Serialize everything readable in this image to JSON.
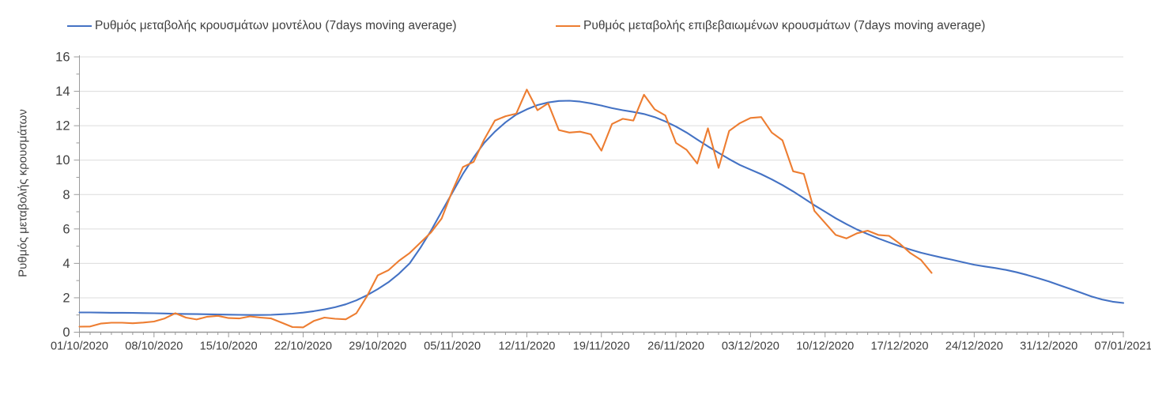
{
  "page": {
    "background": "#ffffff"
  },
  "legend": {
    "items": [
      {
        "label": "Ρυθμός μεταβολής κρουσμάτων μοντέλου (7days moving average)",
        "color": "#4472C4"
      },
      {
        "label": "Ρυθμός μεταβολής επιβεβαιωμένων κρουσμάτων (7days moving average)",
        "color": "#ED7D31"
      }
    ]
  },
  "chart_data": {
    "type": "line",
    "title": "",
    "xlabel": "",
    "ylabel": "Ρυθμός μεταβολής κρουσμάτων",
    "ylim": [
      0,
      16
    ],
    "yticks": [
      0,
      2,
      4,
      6,
      8,
      10,
      12,
      14,
      16
    ],
    "y_minor_step": 1,
    "grid": "horizontal",
    "legend_position": "top",
    "x_tick_labels": [
      "01/10/2020",
      "08/10/2020",
      "15/10/2020",
      "22/10/2020",
      "29/10/2020",
      "05/11/2020",
      "12/11/2020",
      "19/11/2020",
      "26/11/2020",
      "03/12/2020",
      "10/12/2020",
      "17/12/2020",
      "24/12/2020",
      "31/12/2020",
      "07/01/2021"
    ],
    "x_days_per_tick": 7,
    "x_total_days": 98,
    "colors": {
      "grid": "#dcdcdc",
      "axis": "#9b9b9b",
      "text": "#3f3f3f"
    },
    "series": [
      {
        "name": "Ρυθμός μεταβολής κρουσμάτων μοντέλου (7days moving average)",
        "color": "#4472C4",
        "start_day": 0,
        "values": [
          1.15,
          1.15,
          1.14,
          1.13,
          1.13,
          1.12,
          1.11,
          1.1,
          1.09,
          1.07,
          1.06,
          1.05,
          1.04,
          1.03,
          1.02,
          1.01,
          1.0,
          1.0,
          1.01,
          1.04,
          1.08,
          1.14,
          1.22,
          1.32,
          1.45,
          1.62,
          1.85,
          2.15,
          2.5,
          2.9,
          3.4,
          4.0,
          4.9,
          5.9,
          7.0,
          8.1,
          9.2,
          10.15,
          11.0,
          11.65,
          12.2,
          12.65,
          12.95,
          13.2,
          13.35,
          13.44,
          13.45,
          13.4,
          13.3,
          13.17,
          13.02,
          12.9,
          12.8,
          12.68,
          12.5,
          12.25,
          11.95,
          11.6,
          11.2,
          10.8,
          10.42,
          10.06,
          9.72,
          9.45,
          9.18,
          8.88,
          8.55,
          8.18,
          7.78,
          7.38,
          7.0,
          6.62,
          6.28,
          5.97,
          5.7,
          5.45,
          5.22,
          5.0,
          4.8,
          4.62,
          4.47,
          4.33,
          4.2,
          4.06,
          3.92,
          3.82,
          3.73,
          3.62,
          3.48,
          3.32,
          3.14,
          2.95,
          2.73,
          2.52,
          2.3,
          2.08,
          1.9,
          1.77,
          1.7
        ]
      },
      {
        "name": "Ρυθμός μεταβολής επιβεβαιωμένων κρουσμάτων (7days moving average)",
        "color": "#ED7D31",
        "start_day": 0,
        "values": [
          0.32,
          0.33,
          0.5,
          0.55,
          0.55,
          0.52,
          0.56,
          0.62,
          0.8,
          1.1,
          0.85,
          0.74,
          0.9,
          0.95,
          0.82,
          0.8,
          0.92,
          0.85,
          0.8,
          0.55,
          0.3,
          0.28,
          0.65,
          0.85,
          0.78,
          0.75,
          1.1,
          2.1,
          3.3,
          3.6,
          4.15,
          4.6,
          5.2,
          5.8,
          6.6,
          8.2,
          9.6,
          9.9,
          11.2,
          12.3,
          12.55,
          12.7,
          14.1,
          12.9,
          13.3,
          11.75,
          11.6,
          11.65,
          11.5,
          10.55,
          12.1,
          12.4,
          12.3,
          13.8,
          12.95,
          12.6,
          11.0,
          10.6,
          9.8,
          11.85,
          9.55,
          11.7,
          12.15,
          12.45,
          12.5,
          11.6,
          11.15,
          9.35,
          9.2,
          7.05,
          6.35,
          5.65,
          5.45,
          5.75,
          5.9,
          5.65,
          5.6,
          5.15,
          4.6,
          4.2,
          3.45
        ]
      }
    ]
  }
}
